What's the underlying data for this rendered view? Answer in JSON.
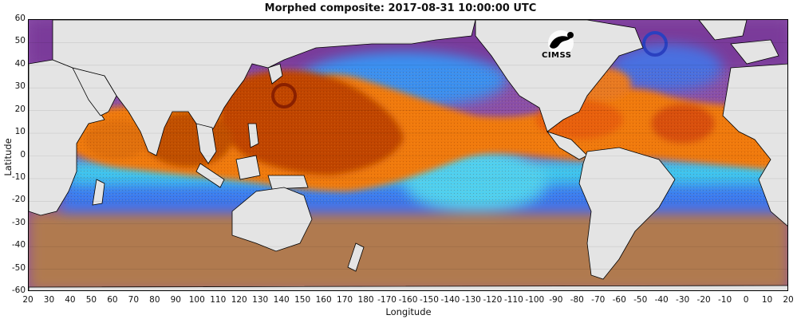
{
  "title": "Morphed composite: 2017-08-31 10:00:00 UTC",
  "xlabel": "Longitude",
  "ylabel": "Latitude",
  "logo_text": "CIMSS",
  "x_ticks": [
    "20",
    "30",
    "40",
    "50",
    "60",
    "70",
    "80",
    "90",
    "100",
    "110",
    "120",
    "130",
    "140",
    "150",
    "160",
    "170",
    "180",
    "-170",
    "-160",
    "-150",
    "-140",
    "-130",
    "-120",
    "-110",
    "-100",
    "-90",
    "-80",
    "-70",
    "-60",
    "-50",
    "-40",
    "-30",
    "-20",
    "-10",
    "0",
    "10",
    "20"
  ],
  "y_ticks": [
    "60",
    "50",
    "40",
    "30",
    "20",
    "10",
    "0",
    "-10",
    "-20",
    "-30",
    "-40",
    "-50",
    "-60"
  ],
  "colors": {
    "land": "#e4e4e4",
    "coast": "#000000",
    "high_tpw": "#c84a00",
    "mid_tpw": "#f08a10",
    "low_mid": "#3aa0ff",
    "cyan": "#40e0ff",
    "low_tpw": "#6a2a9a",
    "very_low": "#b87a3a"
  }
}
